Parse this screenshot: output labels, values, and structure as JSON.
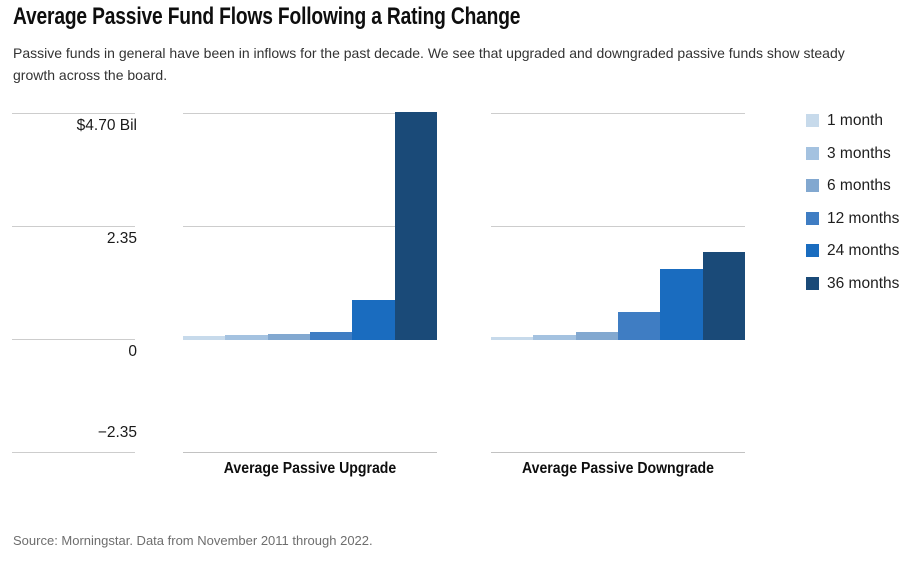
{
  "header": {
    "title": "Average Passive Fund Flows Following a Rating Change",
    "subtitle": "Passive funds in general have been in inflows for the past decade. We see that upgraded and downgraded passive funds show steady growth across the board."
  },
  "chart_data": {
    "type": "bar",
    "title": "Average Passive Fund Flows Following a Rating Change",
    "unit": "$ Bil",
    "groups": [
      "Average Passive Upgrade",
      "Average Passive Downgrade"
    ],
    "categories": [
      "Average Passive Upgrade",
      "Average Passive Downgrade"
    ],
    "series": [
      {
        "name": "1 month",
        "color": "#c7daeb",
        "values": [
          0.08,
          0.06
        ]
      },
      {
        "name": "3 months",
        "color": "#a4c2e0",
        "values": [
          0.09,
          0.1
        ]
      },
      {
        "name": "6 months",
        "color": "#82a8d0",
        "values": [
          0.11,
          0.15
        ]
      },
      {
        "name": "12 months",
        "color": "#3f7dc3",
        "values": [
          0.15,
          0.57
        ]
      },
      {
        "name": "24 months",
        "color": "#1a6cbf",
        "values": [
          0.81,
          1.47
        ]
      },
      {
        "name": "36 months",
        "color": "#1a4a78",
        "values": [
          4.72,
          1.82
        ]
      }
    ],
    "yticks": [
      {
        "value": 4.7,
        "label": "$4.70 Bil"
      },
      {
        "value": 2.35,
        "label": "2.35"
      },
      {
        "value": 0,
        "label": "0"
      },
      {
        "value": -2.35,
        "label": "−2.35"
      }
    ],
    "ylim": [
      -2.35,
      4.7
    ],
    "grid": true,
    "legend_position": "right",
    "gridline_color": "#cdcdcd"
  },
  "footer": {
    "source": "Source: Morningstar. Data from November 2011 through 2022."
  }
}
